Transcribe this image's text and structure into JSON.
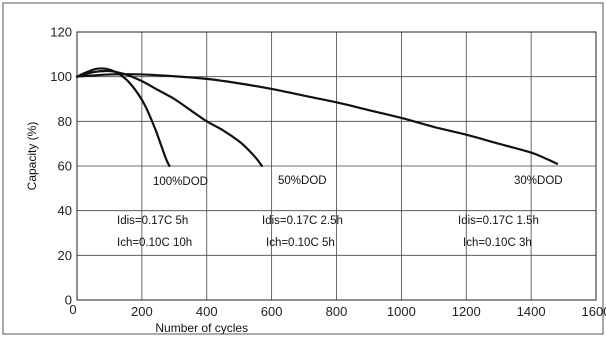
{
  "chart_data": {
    "type": "line",
    "title": "",
    "xlabel": "Number of cycles",
    "ylabel": "Capacity (%)",
    "xlim": [
      0,
      1600
    ],
    "ylim": [
      0,
      120
    ],
    "x_ticks": [
      0,
      200,
      400,
      600,
      800,
      1000,
      1200,
      1400,
      1600
    ],
    "y_ticks": [
      0,
      20,
      40,
      60,
      80,
      100,
      120
    ],
    "grid": true,
    "series": [
      {
        "name": "100%DOD",
        "x": [
          0,
          30,
          60,
          90,
          120,
          150,
          180,
          210,
          240,
          260,
          275,
          285
        ],
        "y": [
          100,
          102,
          103.5,
          103.5,
          102,
          99,
          94,
          87,
          77,
          69,
          63,
          60
        ]
      },
      {
        "name": "50%DOD",
        "x": [
          0,
          50,
          100,
          150,
          200,
          250,
          300,
          350,
          400,
          450,
          500,
          530,
          555,
          570
        ],
        "y": [
          100,
          102,
          102.5,
          101,
          98,
          94,
          90,
          85,
          80,
          76,
          71,
          67,
          63,
          60
        ]
      },
      {
        "name": "30%DOD",
        "x": [
          0,
          100,
          200,
          300,
          400,
          500,
          600,
          700,
          800,
          900,
          1000,
          1100,
          1200,
          1300,
          1400,
          1450,
          1480
        ],
        "y": [
          100,
          101,
          101,
          100.2,
          99,
          97,
          94.5,
          91.5,
          88.5,
          85,
          81.5,
          77.5,
          74,
          70,
          66,
          63,
          61
        ]
      }
    ],
    "annotations": [
      {
        "id": "label_100",
        "text": "100%DOD"
      },
      {
        "id": "label_50",
        "text": "50%DOD"
      },
      {
        "id": "label_30",
        "text": "30%DOD"
      },
      {
        "id": "idis_100",
        "text": "Idis=0.17C  5h"
      },
      {
        "id": "ich_100",
        "text": "Ich=0.10C  10h"
      },
      {
        "id": "idis_50",
        "text": "Idis=0.17C  2.5h"
      },
      {
        "id": "ich_50",
        "text": "Ich=0.10C  5h"
      },
      {
        "id": "idis_30",
        "text": "Idis=0.17C  1.5h"
      },
      {
        "id": "ich_30",
        "text": "Ich=0.10C  3h"
      }
    ]
  }
}
